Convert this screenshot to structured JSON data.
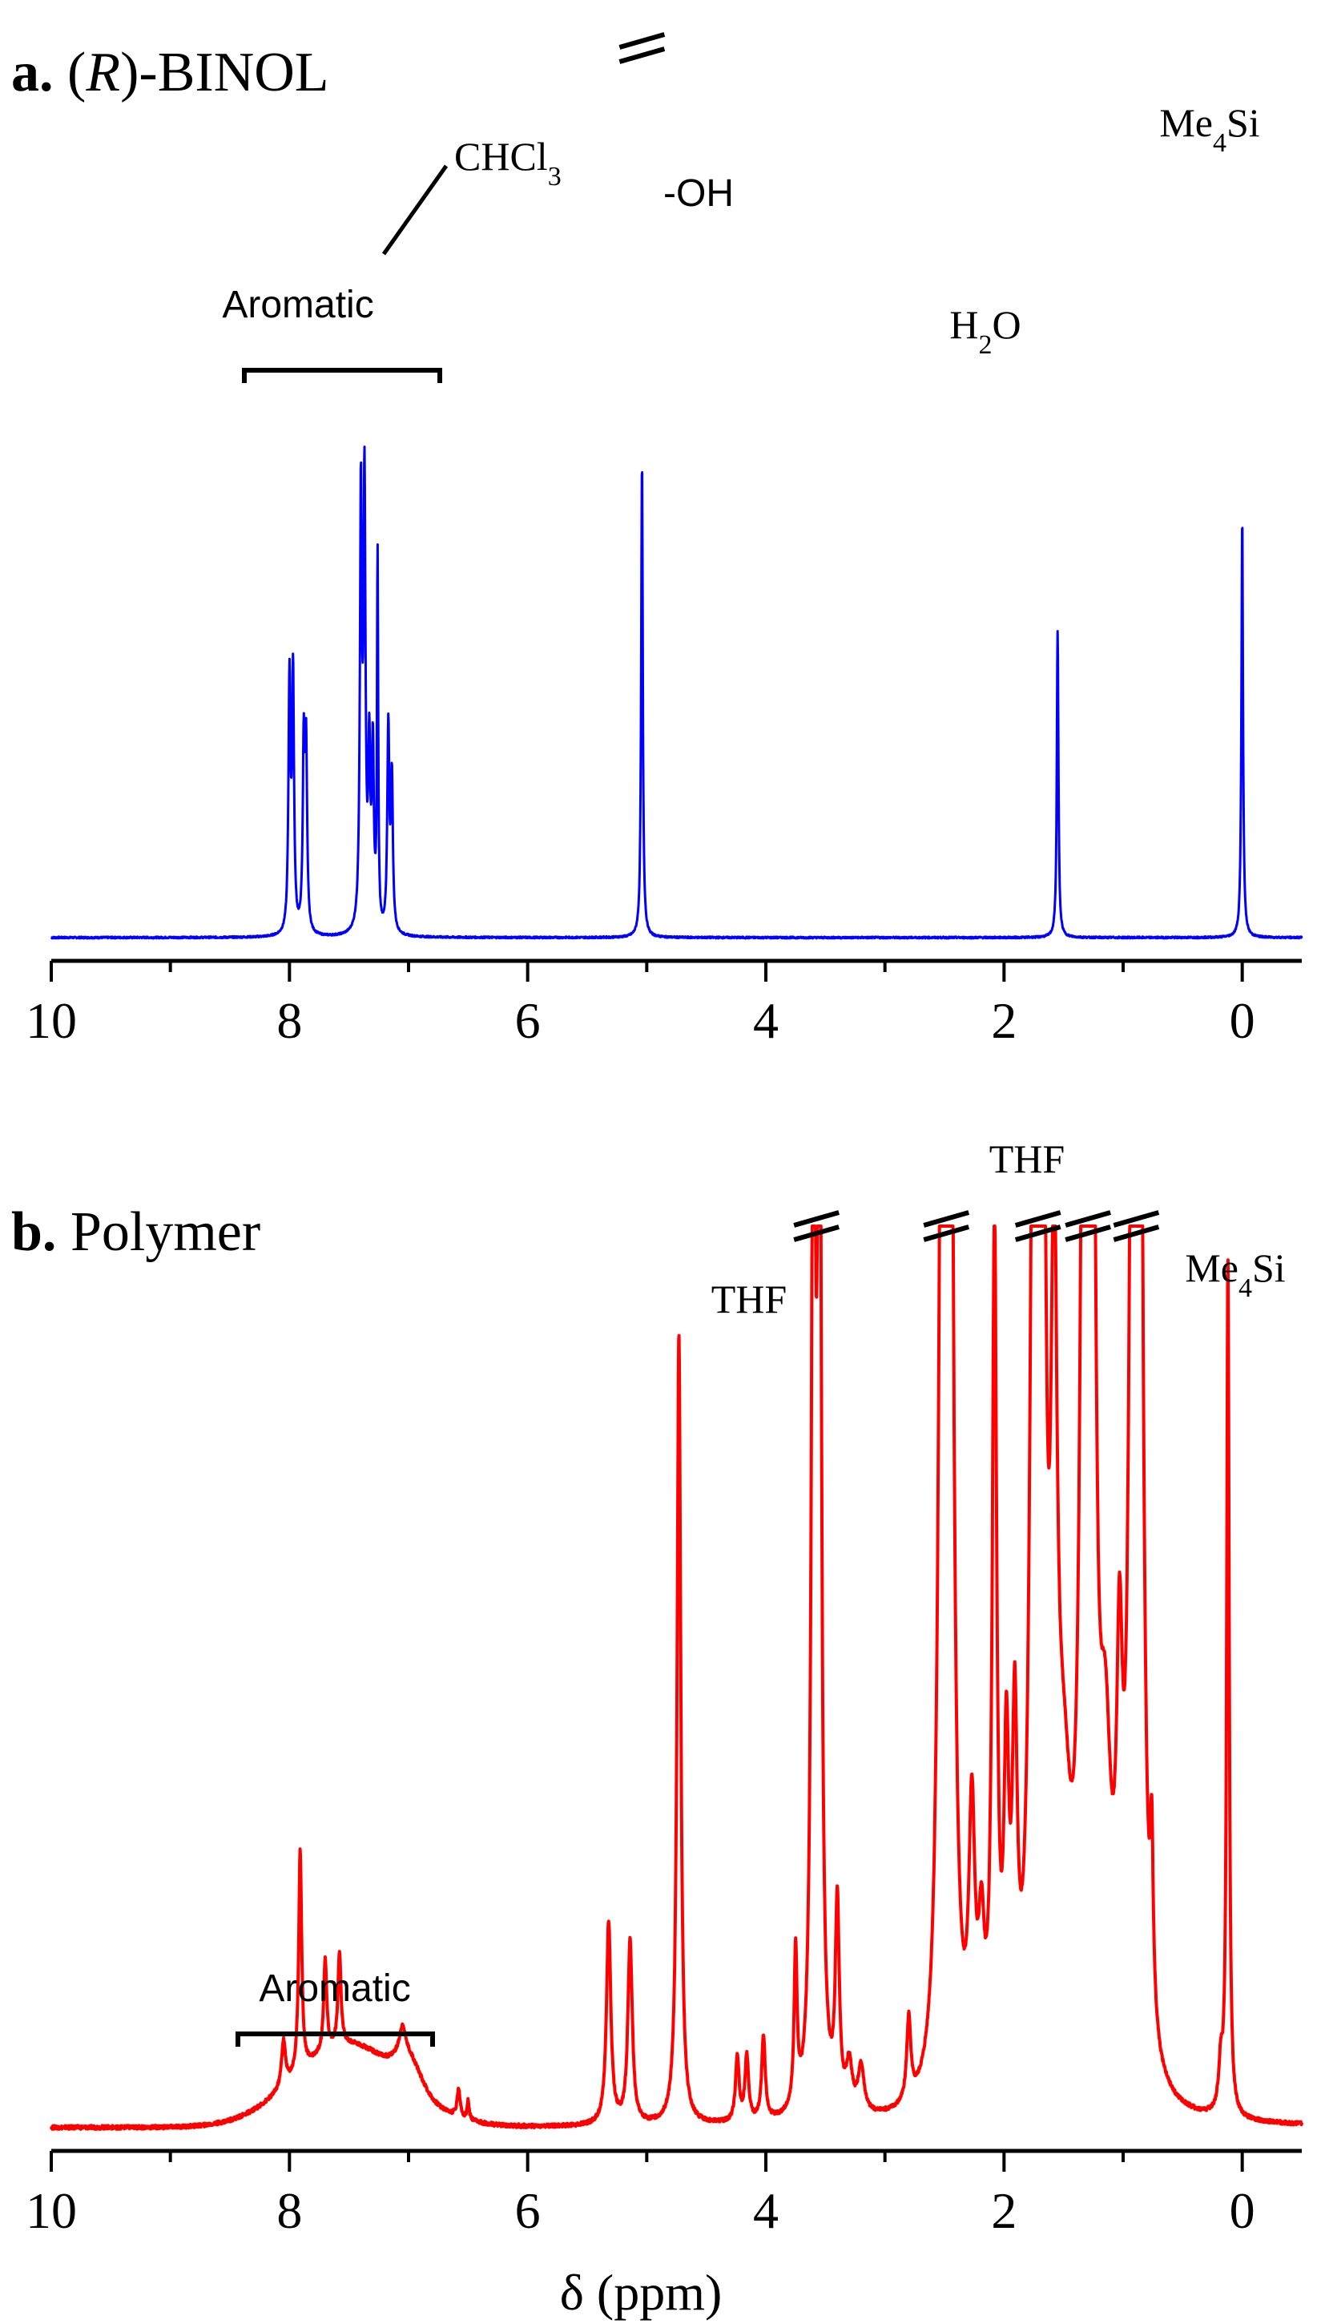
{
  "chart_data": [
    {
      "type": "line",
      "panel_label": "a.",
      "title_prefix": "(",
      "title_italic": "R",
      "title_suffix": ")-BINOL",
      "xlabel": "",
      "ylabel": "",
      "xlim": [
        10,
        -0.5
      ],
      "x_reversed": true,
      "xticks": [
        10,
        8,
        6,
        4,
        2,
        0
      ],
      "minor_xticks": [
        9,
        7,
        5,
        3,
        1
      ],
      "color": "#0000ff",
      "peaks": [
        {
          "x": 8.0,
          "height": 0.58,
          "width": 0.01
        },
        {
          "x": 7.97,
          "height": 0.59,
          "width": 0.01
        },
        {
          "x": 7.88,
          "height": 0.42,
          "width": 0.01
        },
        {
          "x": 7.86,
          "height": 0.41,
          "width": 0.01
        },
        {
          "x": 7.4,
          "height": 0.99,
          "width": 0.01
        },
        {
          "x": 7.37,
          "height": 1.0,
          "width": 0.01
        },
        {
          "x": 7.33,
          "height": 0.39,
          "width": 0.01
        },
        {
          "x": 7.3,
          "height": 0.41,
          "width": 0.01
        },
        {
          "x": 7.26,
          "height": 0.86,
          "width": 0.006
        },
        {
          "x": 7.17,
          "height": 0.47,
          "width": 0.01
        },
        {
          "x": 7.14,
          "height": 0.35,
          "width": 0.01
        },
        {
          "x": 5.04,
          "height": 1.1,
          "width": 0.008
        },
        {
          "x": 1.55,
          "height": 0.71,
          "width": 0.008
        },
        {
          "x": 0.0,
          "height": 0.97,
          "width": 0.008
        }
      ],
      "annotations": [
        {
          "text": "Aromatic",
          "style": "sans"
        },
        {
          "text_main": "CHCl",
          "text_sub": "3",
          "text_after": "",
          "style": "serif"
        },
        {
          "text": "-OH",
          "style": "sans"
        },
        {
          "text_main": "H",
          "text_sub": "2",
          "text_after": "O",
          "style": "serif"
        },
        {
          "text_main": "Me",
          "text_sub": "4",
          "text_after": "Si",
          "style": "serif"
        }
      ],
      "aromatic_range": [
        8.4,
        6.75
      ],
      "axis_breaks": [
        5.04
      ]
    },
    {
      "type": "line",
      "panel_label": "b.",
      "title": "Polymer",
      "xlabel": "δ (ppm)",
      "ylabel": "",
      "xlim": [
        10,
        -0.5
      ],
      "x_reversed": true,
      "xticks": [
        10,
        8,
        6,
        4,
        2,
        0
      ],
      "minor_xticks": [
        9,
        7,
        5,
        3,
        1
      ],
      "color": "#ff0000",
      "broad_humps": [
        {
          "x": 7.5,
          "height": 0.09,
          "width": 0.45
        },
        {
          "x": 7.0,
          "height": 0.03,
          "width": 0.1
        }
      ],
      "peaks": [
        {
          "x": 8.05,
          "height": 0.05,
          "width": 0.02
        },
        {
          "x": 7.91,
          "height": 0.24,
          "width": 0.015
        },
        {
          "x": 7.7,
          "height": 0.1,
          "width": 0.015
        },
        {
          "x": 7.58,
          "height": 0.1,
          "width": 0.015
        },
        {
          "x": 7.05,
          "height": 0.03,
          "width": 0.03
        },
        {
          "x": 6.58,
          "height": 0.03,
          "width": 0.015
        },
        {
          "x": 6.5,
          "height": 0.02,
          "width": 0.01
        },
        {
          "x": 5.32,
          "height": 0.22,
          "width": 0.022
        },
        {
          "x": 5.14,
          "height": 0.2,
          "width": 0.022
        },
        {
          "x": 4.73,
          "height": 0.86,
          "width": 0.018
        },
        {
          "x": 4.24,
          "height": 0.07,
          "width": 0.018
        },
        {
          "x": 4.16,
          "height": 0.07,
          "width": 0.018
        },
        {
          "x": 4.02,
          "height": 0.09,
          "width": 0.018
        },
        {
          "x": 3.75,
          "height": 0.17,
          "width": 0.015
        },
        {
          "x": 3.6,
          "height": 1.3,
          "width": 0.018
        },
        {
          "x": 3.55,
          "height": 1.3,
          "width": 0.018
        },
        {
          "x": 3.4,
          "height": 0.22,
          "width": 0.02
        },
        {
          "x": 3.3,
          "height": 0.05,
          "width": 0.03
        },
        {
          "x": 3.2,
          "height": 0.05,
          "width": 0.03
        },
        {
          "x": 2.8,
          "height": 0.09,
          "width": 0.02
        },
        {
          "x": 2.52,
          "height": 1.3,
          "width": 0.03
        },
        {
          "x": 2.45,
          "height": 1.3,
          "width": 0.03
        },
        {
          "x": 2.27,
          "height": 0.28,
          "width": 0.03
        },
        {
          "x": 2.19,
          "height": 0.14,
          "width": 0.03
        },
        {
          "x": 2.08,
          "height": 0.92,
          "width": 0.022
        },
        {
          "x": 1.98,
          "height": 0.32,
          "width": 0.025
        },
        {
          "x": 1.91,
          "height": 0.35,
          "width": 0.025
        },
        {
          "x": 1.75,
          "height": 1.3,
          "width": 0.03
        },
        {
          "x": 1.68,
          "height": 1.3,
          "width": 0.03
        },
        {
          "x": 1.58,
          "height": 0.76,
          "width": 0.03
        },
        {
          "x": 1.5,
          "height": 0.25,
          "width": 0.08
        },
        {
          "x": 1.33,
          "height": 1.3,
          "width": 0.03
        },
        {
          "x": 1.26,
          "height": 1.3,
          "width": 0.03
        },
        {
          "x": 1.15,
          "height": 0.3,
          "width": 0.06
        },
        {
          "x": 1.03,
          "height": 0.36,
          "width": 0.03
        },
        {
          "x": 0.92,
          "height": 1.3,
          "width": 0.03
        },
        {
          "x": 0.86,
          "height": 1.3,
          "width": 0.03
        },
        {
          "x": 0.76,
          "height": 0.18,
          "width": 0.015
        },
        {
          "x": 0.18,
          "height": 0.05,
          "width": 0.02
        },
        {
          "x": 0.12,
          "height": 0.93,
          "width": 0.012
        }
      ],
      "annotations": [
        {
          "text": "Aromatic",
          "style": "sans"
        },
        {
          "text": "THF",
          "style": "serif"
        },
        {
          "text": "THF",
          "style": "serif"
        },
        {
          "text_main": "Me",
          "text_sub": "4",
          "text_after": "Si",
          "style": "serif"
        }
      ],
      "aromatic_range": [
        8.4,
        6.8
      ],
      "axis_breaks": [
        3.575,
        2.485,
        1.715,
        1.295,
        0.89
      ]
    }
  ]
}
